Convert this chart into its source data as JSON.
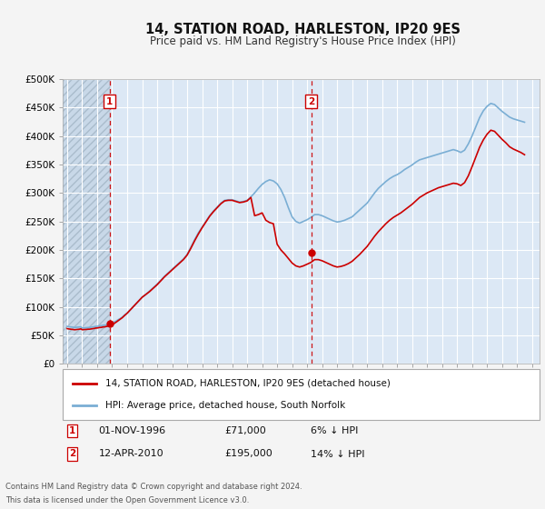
{
  "title": "14, STATION ROAD, HARLESTON, IP20 9ES",
  "subtitle": "Price paid vs. HM Land Registry's House Price Index (HPI)",
  "ylim": [
    0,
    500000
  ],
  "yticks": [
    0,
    50000,
    100000,
    150000,
    200000,
    250000,
    300000,
    350000,
    400000,
    450000,
    500000
  ],
  "ytick_labels": [
    "£0",
    "£50K",
    "£100K",
    "£150K",
    "£200K",
    "£250K",
    "£300K",
    "£350K",
    "£400K",
    "£450K",
    "£500K"
  ],
  "xlim_start": 1993.7,
  "xlim_end": 2025.5,
  "fig_bg_color": "#f4f4f4",
  "plot_bg_color": "#dce8f5",
  "grid_color": "#ffffff",
  "red_line_color": "#cc0000",
  "blue_line_color": "#7aaed4",
  "marker_color": "#cc0000",
  "sale1_date": 1996.83,
  "sale1_price": 71000,
  "sale1_label": "1",
  "sale2_date": 2010.28,
  "sale2_price": 195000,
  "sale2_label": "2",
  "legend_entry1": "14, STATION ROAD, HARLESTON, IP20 9ES (detached house)",
  "legend_entry2": "HPI: Average price, detached house, South Norfolk",
  "footer": "Contains HM Land Registry data © Crown copyright and database right 2024.\nThis data is licensed under the Open Government Licence v3.0.",
  "hpi_data_years": [
    1994.0,
    1994.08,
    1994.17,
    1994.25,
    1994.33,
    1994.42,
    1994.5,
    1994.58,
    1994.67,
    1994.75,
    1994.83,
    1994.92,
    1995.0,
    1995.08,
    1995.17,
    1995.25,
    1995.33,
    1995.42,
    1995.5,
    1995.58,
    1995.67,
    1995.75,
    1995.83,
    1995.92,
    1996.0,
    1996.08,
    1996.17,
    1996.25,
    1996.33,
    1996.42,
    1996.5,
    1996.58,
    1996.67,
    1996.75,
    1996.83,
    1996.92,
    1997.0,
    1997.08,
    1997.17,
    1997.25,
    1997.33,
    1997.42,
    1997.5,
    1997.58,
    1997.67,
    1997.75,
    1997.83,
    1997.92,
    1998.0,
    1998.25,
    1998.5,
    1998.75,
    1999.0,
    1999.25,
    1999.5,
    1999.75,
    2000.0,
    2000.25,
    2000.5,
    2000.75,
    2001.0,
    2001.25,
    2001.5,
    2001.75,
    2002.0,
    2002.25,
    2002.5,
    2002.75,
    2003.0,
    2003.25,
    2003.5,
    2003.75,
    2004.0,
    2004.25,
    2004.5,
    2004.75,
    2005.0,
    2005.25,
    2005.5,
    2005.75,
    2006.0,
    2006.25,
    2006.5,
    2006.75,
    2007.0,
    2007.25,
    2007.5,
    2007.75,
    2008.0,
    2008.25,
    2008.5,
    2008.75,
    2009.0,
    2009.25,
    2009.5,
    2009.75,
    2010.0,
    2010.25,
    2010.5,
    2010.75,
    2011.0,
    2011.25,
    2011.5,
    2011.75,
    2012.0,
    2012.25,
    2012.5,
    2012.75,
    2013.0,
    2013.25,
    2013.5,
    2013.75,
    2014.0,
    2014.25,
    2014.5,
    2014.75,
    2015.0,
    2015.25,
    2015.5,
    2015.75,
    2016.0,
    2016.25,
    2016.5,
    2016.75,
    2017.0,
    2017.25,
    2017.5,
    2017.75,
    2018.0,
    2018.25,
    2018.5,
    2018.75,
    2019.0,
    2019.25,
    2019.5,
    2019.75,
    2020.0,
    2020.25,
    2020.5,
    2020.75,
    2021.0,
    2021.25,
    2021.5,
    2021.75,
    2022.0,
    2022.25,
    2022.5,
    2022.75,
    2023.0,
    2023.25,
    2023.5,
    2023.75,
    2024.0,
    2024.25,
    2024.5
  ],
  "hpi_data_values": [
    66000,
    65500,
    65200,
    65000,
    64800,
    64400,
    64000,
    64200,
    64300,
    64500,
    64700,
    65000,
    63000,
    63200,
    63400,
    63500,
    63700,
    63900,
    64000,
    64300,
    64600,
    65000,
    65500,
    66000,
    66000,
    66500,
    67000,
    67000,
    67500,
    68000,
    68000,
    68500,
    69000,
    69500,
    70000,
    71000,
    72000,
    73000,
    74000,
    75000,
    76500,
    78000,
    79000,
    80500,
    82000,
    84000,
    86000,
    87500,
    89000,
    96000,
    103000,
    110000,
    117000,
    122000,
    128000,
    134000,
    140000,
    147000,
    154000,
    160000,
    166000,
    172000,
    178000,
    184000,
    192000,
    205000,
    218000,
    230000,
    240000,
    250000,
    260000,
    268000,
    275000,
    282000,
    287000,
    288000,
    288000,
    286000,
    284000,
    285000,
    287000,
    293000,
    300000,
    308000,
    315000,
    320000,
    323000,
    321000,
    316000,
    306000,
    292000,
    274000,
    258000,
    250000,
    247000,
    250000,
    253000,
    257000,
    262000,
    262000,
    260000,
    257000,
    254000,
    251000,
    249000,
    250000,
    252000,
    255000,
    258000,
    264000,
    270000,
    276000,
    282000,
    291000,
    300000,
    308000,
    314000,
    320000,
    325000,
    329000,
    332000,
    336000,
    341000,
    345000,
    349000,
    354000,
    358000,
    360000,
    362000,
    364000,
    366000,
    368000,
    370000,
    372000,
    374000,
    376000,
    374000,
    371000,
    375000,
    386000,
    400000,
    416000,
    432000,
    444000,
    452000,
    457000,
    455000,
    449000,
    443000,
    438000,
    433000,
    430000,
    428000,
    426000,
    424000
  ],
  "pp_data_years": [
    1994.0,
    1994.08,
    1994.17,
    1994.25,
    1994.33,
    1994.42,
    1994.5,
    1994.58,
    1994.67,
    1994.75,
    1994.83,
    1994.92,
    1995.0,
    1995.08,
    1995.17,
    1995.25,
    1995.33,
    1995.42,
    1995.5,
    1995.58,
    1995.67,
    1995.75,
    1995.83,
    1995.92,
    1996.0,
    1996.08,
    1996.17,
    1996.25,
    1996.33,
    1996.42,
    1996.5,
    1996.58,
    1996.67,
    1996.75,
    1996.83,
    1996.92,
    1997.0,
    1997.08,
    1997.17,
    1997.25,
    1997.33,
    1997.42,
    1997.5,
    1997.58,
    1997.67,
    1997.75,
    1997.83,
    1997.92,
    1998.0,
    1998.25,
    1998.5,
    1998.75,
    1999.0,
    1999.25,
    1999.5,
    1999.75,
    2000.0,
    2000.25,
    2000.5,
    2000.75,
    2001.0,
    2001.25,
    2001.5,
    2001.75,
    2002.0,
    2002.25,
    2002.5,
    2002.75,
    2003.0,
    2003.25,
    2003.5,
    2003.75,
    2004.0,
    2004.25,
    2004.5,
    2004.75,
    2005.0,
    2005.25,
    2005.5,
    2005.75,
    2006.0,
    2006.25,
    2006.5,
    2006.75,
    2007.0,
    2007.25,
    2007.5,
    2007.75,
    2008.0,
    2008.25,
    2008.5,
    2008.75,
    2009.0,
    2009.25,
    2009.5,
    2009.75,
    2010.0,
    2010.25,
    2010.5,
    2010.75,
    2011.0,
    2011.25,
    2011.5,
    2011.75,
    2012.0,
    2012.25,
    2012.5,
    2012.75,
    2013.0,
    2013.25,
    2013.5,
    2013.75,
    2014.0,
    2014.25,
    2014.5,
    2014.75,
    2015.0,
    2015.25,
    2015.5,
    2015.75,
    2016.0,
    2016.25,
    2016.5,
    2016.75,
    2017.0,
    2017.25,
    2017.5,
    2017.75,
    2018.0,
    2018.25,
    2018.5,
    2018.75,
    2019.0,
    2019.25,
    2019.5,
    2019.75,
    2020.0,
    2020.25,
    2020.5,
    2020.75,
    2021.0,
    2021.25,
    2021.5,
    2021.75,
    2022.0,
    2022.25,
    2022.5,
    2022.75,
    2023.0,
    2023.25,
    2023.5,
    2023.75,
    2024.0,
    2024.25,
    2024.5
  ],
  "pp_data_values": [
    62000,
    61500,
    61200,
    61000,
    60800,
    60400,
    60000,
    60200,
    60400,
    60600,
    61000,
    61500,
    60000,
    60200,
    60400,
    60500,
    60700,
    60900,
    61000,
    61300,
    61700,
    62000,
    62500,
    63000,
    63000,
    63500,
    64000,
    64000,
    64500,
    65000,
    65000,
    65500,
    66000,
    66500,
    67000,
    68000,
    69000,
    70000,
    71500,
    73000,
    74500,
    76000,
    77500,
    79000,
    81000,
    83000,
    85000,
    87000,
    89000,
    96000,
    103000,
    110000,
    117000,
    122000,
    127000,
    133000,
    139000,
    146000,
    153000,
    159000,
    165000,
    171000,
    177000,
    183000,
    191000,
    203000,
    216000,
    228000,
    239000,
    249000,
    259000,
    267000,
    274000,
    281000,
    286000,
    287000,
    287000,
    285000,
    283000,
    284000,
    286000,
    292000,
    260000,
    262000,
    265000,
    252000,
    248000,
    246000,
    210000,
    200000,
    193000,
    185000,
    177000,
    172000,
    170000,
    172000,
    175000,
    178000,
    183000,
    183000,
    181000,
    178000,
    175000,
    172000,
    170000,
    171000,
    173000,
    176000,
    180000,
    186000,
    192000,
    199000,
    206000,
    215000,
    224000,
    232000,
    239000,
    246000,
    252000,
    257000,
    261000,
    265000,
    270000,
    275000,
    280000,
    286000,
    292000,
    296000,
    300000,
    303000,
    306000,
    309000,
    311000,
    313000,
    315000,
    317000,
    316000,
    313000,
    318000,
    330000,
    346000,
    363000,
    380000,
    393000,
    403000,
    410000,
    408000,
    401000,
    394000,
    388000,
    381000,
    377000,
    374000,
    371000,
    367000
  ]
}
